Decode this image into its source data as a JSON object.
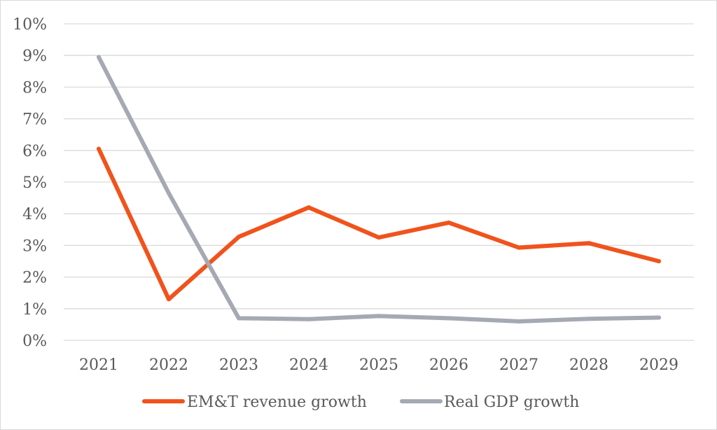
{
  "chart_data": {
    "type": "line",
    "categories": [
      "2021",
      "2022",
      "2023",
      "2024",
      "2025",
      "2026",
      "2027",
      "2028",
      "2029"
    ],
    "ylim": [
      0,
      10
    ],
    "y_ticks": [
      "0%",
      "1%",
      "2%",
      "3%",
      "4%",
      "5%",
      "6%",
      "7%",
      "8%",
      "9%",
      "10%"
    ],
    "grid": true,
    "legend_position": "bottom",
    "series": [
      {
        "name": "EM&T revenue growth",
        "color": "#f0531c",
        "values": [
          6.05,
          1.3,
          3.27,
          4.2,
          3.25,
          3.72,
          2.93,
          3.07,
          2.5
        ]
      },
      {
        "name": "Real GDP growth",
        "color": "#a5a9b3",
        "values": [
          8.95,
          4.65,
          0.7,
          0.67,
          0.77,
          0.7,
          0.6,
          0.68,
          0.72
        ]
      }
    ]
  }
}
